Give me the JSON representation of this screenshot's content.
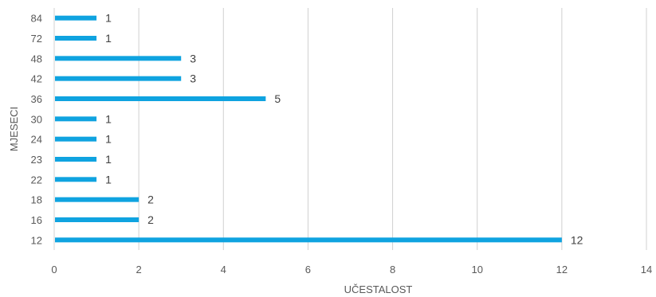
{
  "chart_data": {
    "type": "bar",
    "orientation": "horizontal",
    "title": "",
    "xlabel": "UČESTALOST",
    "ylabel": "MJESECI",
    "categories": [
      "84",
      "72",
      "48",
      "42",
      "36",
      "30",
      "24",
      "23",
      "22",
      "18",
      "16",
      "12"
    ],
    "values": [
      1,
      1,
      3,
      3,
      5,
      1,
      1,
      1,
      1,
      2,
      2,
      12
    ],
    "xlim": [
      0,
      14
    ],
    "xticks": [
      0,
      2,
      4,
      6,
      8,
      10,
      12,
      14
    ],
    "grid": "vertical",
    "legend": "none",
    "data_labels": true,
    "bar_color": "#0FA3E0",
    "grid_color": "#D0D0D0"
  }
}
